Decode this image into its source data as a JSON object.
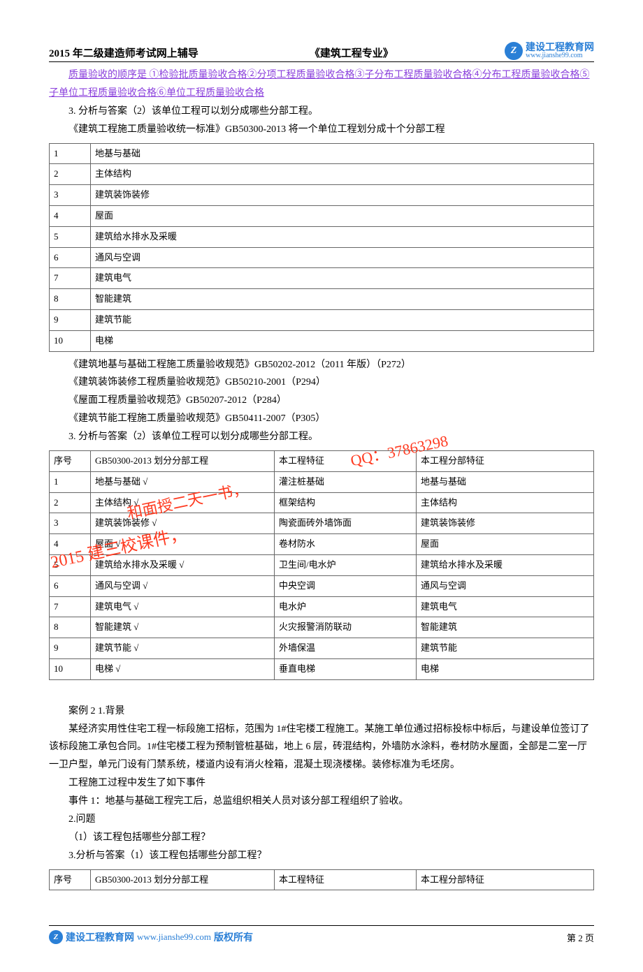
{
  "header": {
    "left": "2015 年二级建造师考试网上辅导",
    "mid": "《建筑工程专业》",
    "logo_cn": "建设工程教育网",
    "logo_en": "www.jianshe99.com",
    "logo_glyph": "Z"
  },
  "link1": "质量验收的顺序是 ①检验批质量验收合格②分项工程质量验收合格③子分布工程质量验收合格④分布工程质量验收合格⑤子单位工程质量验收合格⑥单位工程质量验收合格",
  "p_analysis1": "3. 分析与答案（2）该单位工程可以划分成哪些分部工程。",
  "p_standard1": "《建筑工程施工质量验收统一标准》GB50300-2013 将一个单位工程划分成十个分部工程",
  "table1_rows": [
    [
      "1",
      "地基与基础"
    ],
    [
      "2",
      "主体结构"
    ],
    [
      "3",
      "建筑装饰装修"
    ],
    [
      "4",
      "屋面"
    ],
    [
      "5",
      "建筑给水排水及采暖"
    ],
    [
      "6",
      "通风与空调"
    ],
    [
      "7",
      "建筑电气"
    ],
    [
      "8",
      "智能建筑"
    ],
    [
      "9",
      "建筑节能"
    ],
    [
      "10",
      "电梯"
    ]
  ],
  "refs": [
    "《建筑地基与基础工程施工质量验收规范》GB50202-2012（2011 年版）（P272）",
    "《建筑装饰装修工程质量验收规范》GB50210-2001（P294）",
    "《屋面工程质量验收规范》GB50207-2012（P284）",
    "《建筑节能工程施工质量验收规范》GB50411-2007（P305）"
  ],
  "p_analysis2": "3. 分析与答案（2）该单位工程可以划分成哪些分部工程。",
  "table2_head": [
    "序号",
    "GB50300-2013 划分分部工程",
    "本工程特征",
    "本工程分部特征"
  ],
  "table2_rows": [
    [
      "1",
      "地基与基础 √",
      "灌注桩基础",
      "地基与基础"
    ],
    [
      "2",
      "主体结构 √",
      "框架结构",
      "主体结构"
    ],
    [
      "3",
      "建筑装饰装修 √",
      "陶瓷面砖外墙饰面",
      "建筑装饰装修"
    ],
    [
      "4",
      "屋面 √",
      "卷材防水",
      "屋面"
    ],
    [
      "5",
      "建筑给水排水及采暖 √",
      "卫生间/电水炉",
      "建筑给水排水及采暖"
    ],
    [
      "6",
      "通风与空调 √",
      "中央空调",
      "通风与空调"
    ],
    [
      "7",
      "建筑电气 √",
      "电水炉",
      "建筑电气"
    ],
    [
      "8",
      "智能建筑 √",
      "火灾报警消防联动",
      "智能建筑"
    ],
    [
      "9",
      "建筑节能 √",
      "外墙保温",
      "建筑节能"
    ],
    [
      "10",
      "电梯 √",
      "垂直电梯",
      "电梯"
    ]
  ],
  "case2": {
    "title": "案例 2 1.背景",
    "bg": "某经济实用性住宅工程一标段施工招标，范围为 1#住宅楼工程施工。某施工单位通过招标投标中标后，与建设单位签订了该标段施工承包合同。1#住宅楼工程为预制管桩基础，地上 6 层，砖混结构，外墙防水涂料，卷材防水屋面，全部是二室一厅一卫户型，单元门设有门禁系统，楼道内设有消火栓箱，混凝土现浇楼梯。装修标准为毛坯房。",
    "events_label": "工程施工过程中发生了如下事件",
    "event1": "事件 1：地基与基础工程完工后，总监组织相关人员对该分部工程组织了验收。",
    "q_label": "2.问题",
    "q1": "（1）该工程包括哪些分部工程？",
    "ans_label": "3.分析与答案（1）该工程包括哪些分部工程？"
  },
  "table3_head": [
    "序号",
    "GB50300-2013 划分分部工程",
    "本工程特征",
    "本工程分部特征"
  ],
  "watermarks": {
    "wm1": "QQ：37863298",
    "wm2": "和面授二天一书，",
    "wm3": "2015 建三校课件，"
  },
  "footer": {
    "cn": "建设工程教育网",
    "url": "www.jianshe99.com",
    "copy": "版权所有",
    "page": "第 2 页",
    "logo_glyph": "Z"
  },
  "colors": {
    "link": "#8a3fdc",
    "brand": "#2a7fd6",
    "wm": "#ff3a20",
    "border": "#666666",
    "text": "#000000",
    "bg": "#ffffff"
  }
}
